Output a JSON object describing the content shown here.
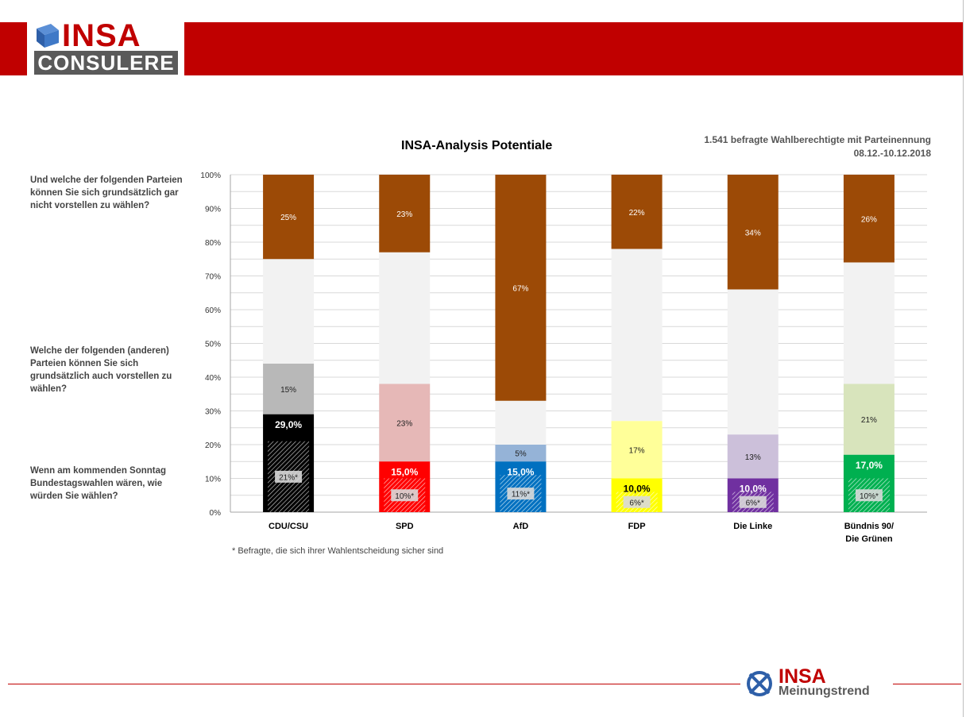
{
  "brand": {
    "logo_top": "INSA",
    "logo_bottom": "CONSULERE",
    "footer_top": "INSA",
    "footer_bottom": "Meinungstrend"
  },
  "colors": {
    "band": "#c00000",
    "never": "#9c4a06",
    "remainder": "#f2f2f2",
    "grid": "#d9d9d9"
  },
  "header": {
    "title": "INSA-Analysis Potentiale",
    "sample": "1.541 befragte Wahlberechtigte mit Parteinennung",
    "dates": "08.12.-10.12.2018"
  },
  "questions": {
    "never": "Und welche der folgenden Parteien können Sie sich grundsätzlich gar nicht vorstellen zu wählen?",
    "also": "Welche der folgenden (anderen) Parteien können Sie sich grundsätzlich auch vorstellen zu wählen?",
    "vote": "Wenn am kommenden Sonntag Bundestagswahlen wären, wie würden Sie wählen?"
  },
  "footnote": "* Befragte, die sich ihrer Wahlentscheidung sicher sind",
  "chart_data": {
    "type": "bar",
    "stacked": true,
    "title": "INSA-Analysis Potentiale",
    "ylim": [
      0,
      100
    ],
    "yticks": [
      "0%",
      "10%",
      "20%",
      "30%",
      "40%",
      "50%",
      "60%",
      "70%",
      "80%",
      "90%",
      "100%"
    ],
    "grid": true,
    "categories": [
      {
        "lines": [
          "CDU/CSU"
        ],
        "vote_color": "#000000",
        "also_color": "#b8b8b8",
        "vote_text_color": "#ffffff"
      },
      {
        "lines": [
          "SPD"
        ],
        "vote_color": "#ff0000",
        "also_color": "#e6b8b7",
        "vote_text_color": "#ffffff"
      },
      {
        "lines": [
          "AfD"
        ],
        "vote_color": "#0070c0",
        "also_color": "#95b3d7",
        "vote_text_color": "#ffffff"
      },
      {
        "lines": [
          "FDP"
        ],
        "vote_color": "#ffff00",
        "also_color": "#ffff99",
        "vote_text_color": "#000000"
      },
      {
        "lines": [
          "Die Linke"
        ],
        "vote_color": "#7030a0",
        "also_color": "#ccc0da",
        "vote_text_color": "#ffffff"
      },
      {
        "lines": [
          "Bündnis 90/",
          "Die Grünen"
        ],
        "vote_color": "#00b050",
        "also_color": "#d8e4bc",
        "vote_text_color": "#ffffff"
      }
    ],
    "series": [
      {
        "key": "sure",
        "values": [
          21,
          10,
          11,
          6,
          6,
          10
        ],
        "labels": [
          "21%*",
          "10%*",
          "11%*",
          "6%*",
          "6%*",
          "10%*"
        ]
      },
      {
        "key": "vote",
        "values": [
          29.0,
          15.0,
          15.0,
          10.0,
          10.0,
          17.0
        ],
        "labels": [
          "29,0%",
          "15,0%",
          "15,0%",
          "10,0%",
          "10,0%",
          "17,0%"
        ]
      },
      {
        "key": "also",
        "values": [
          15,
          23,
          5,
          17,
          13,
          21
        ],
        "labels": [
          "15%",
          "23%",
          "5%",
          "17%",
          "13%",
          "21%"
        ]
      },
      {
        "key": "never",
        "values": [
          25,
          23,
          67,
          22,
          34,
          26
        ],
        "labels": [
          "25%",
          "23%",
          "67%",
          "22%",
          "34%",
          "26%"
        ]
      }
    ]
  }
}
